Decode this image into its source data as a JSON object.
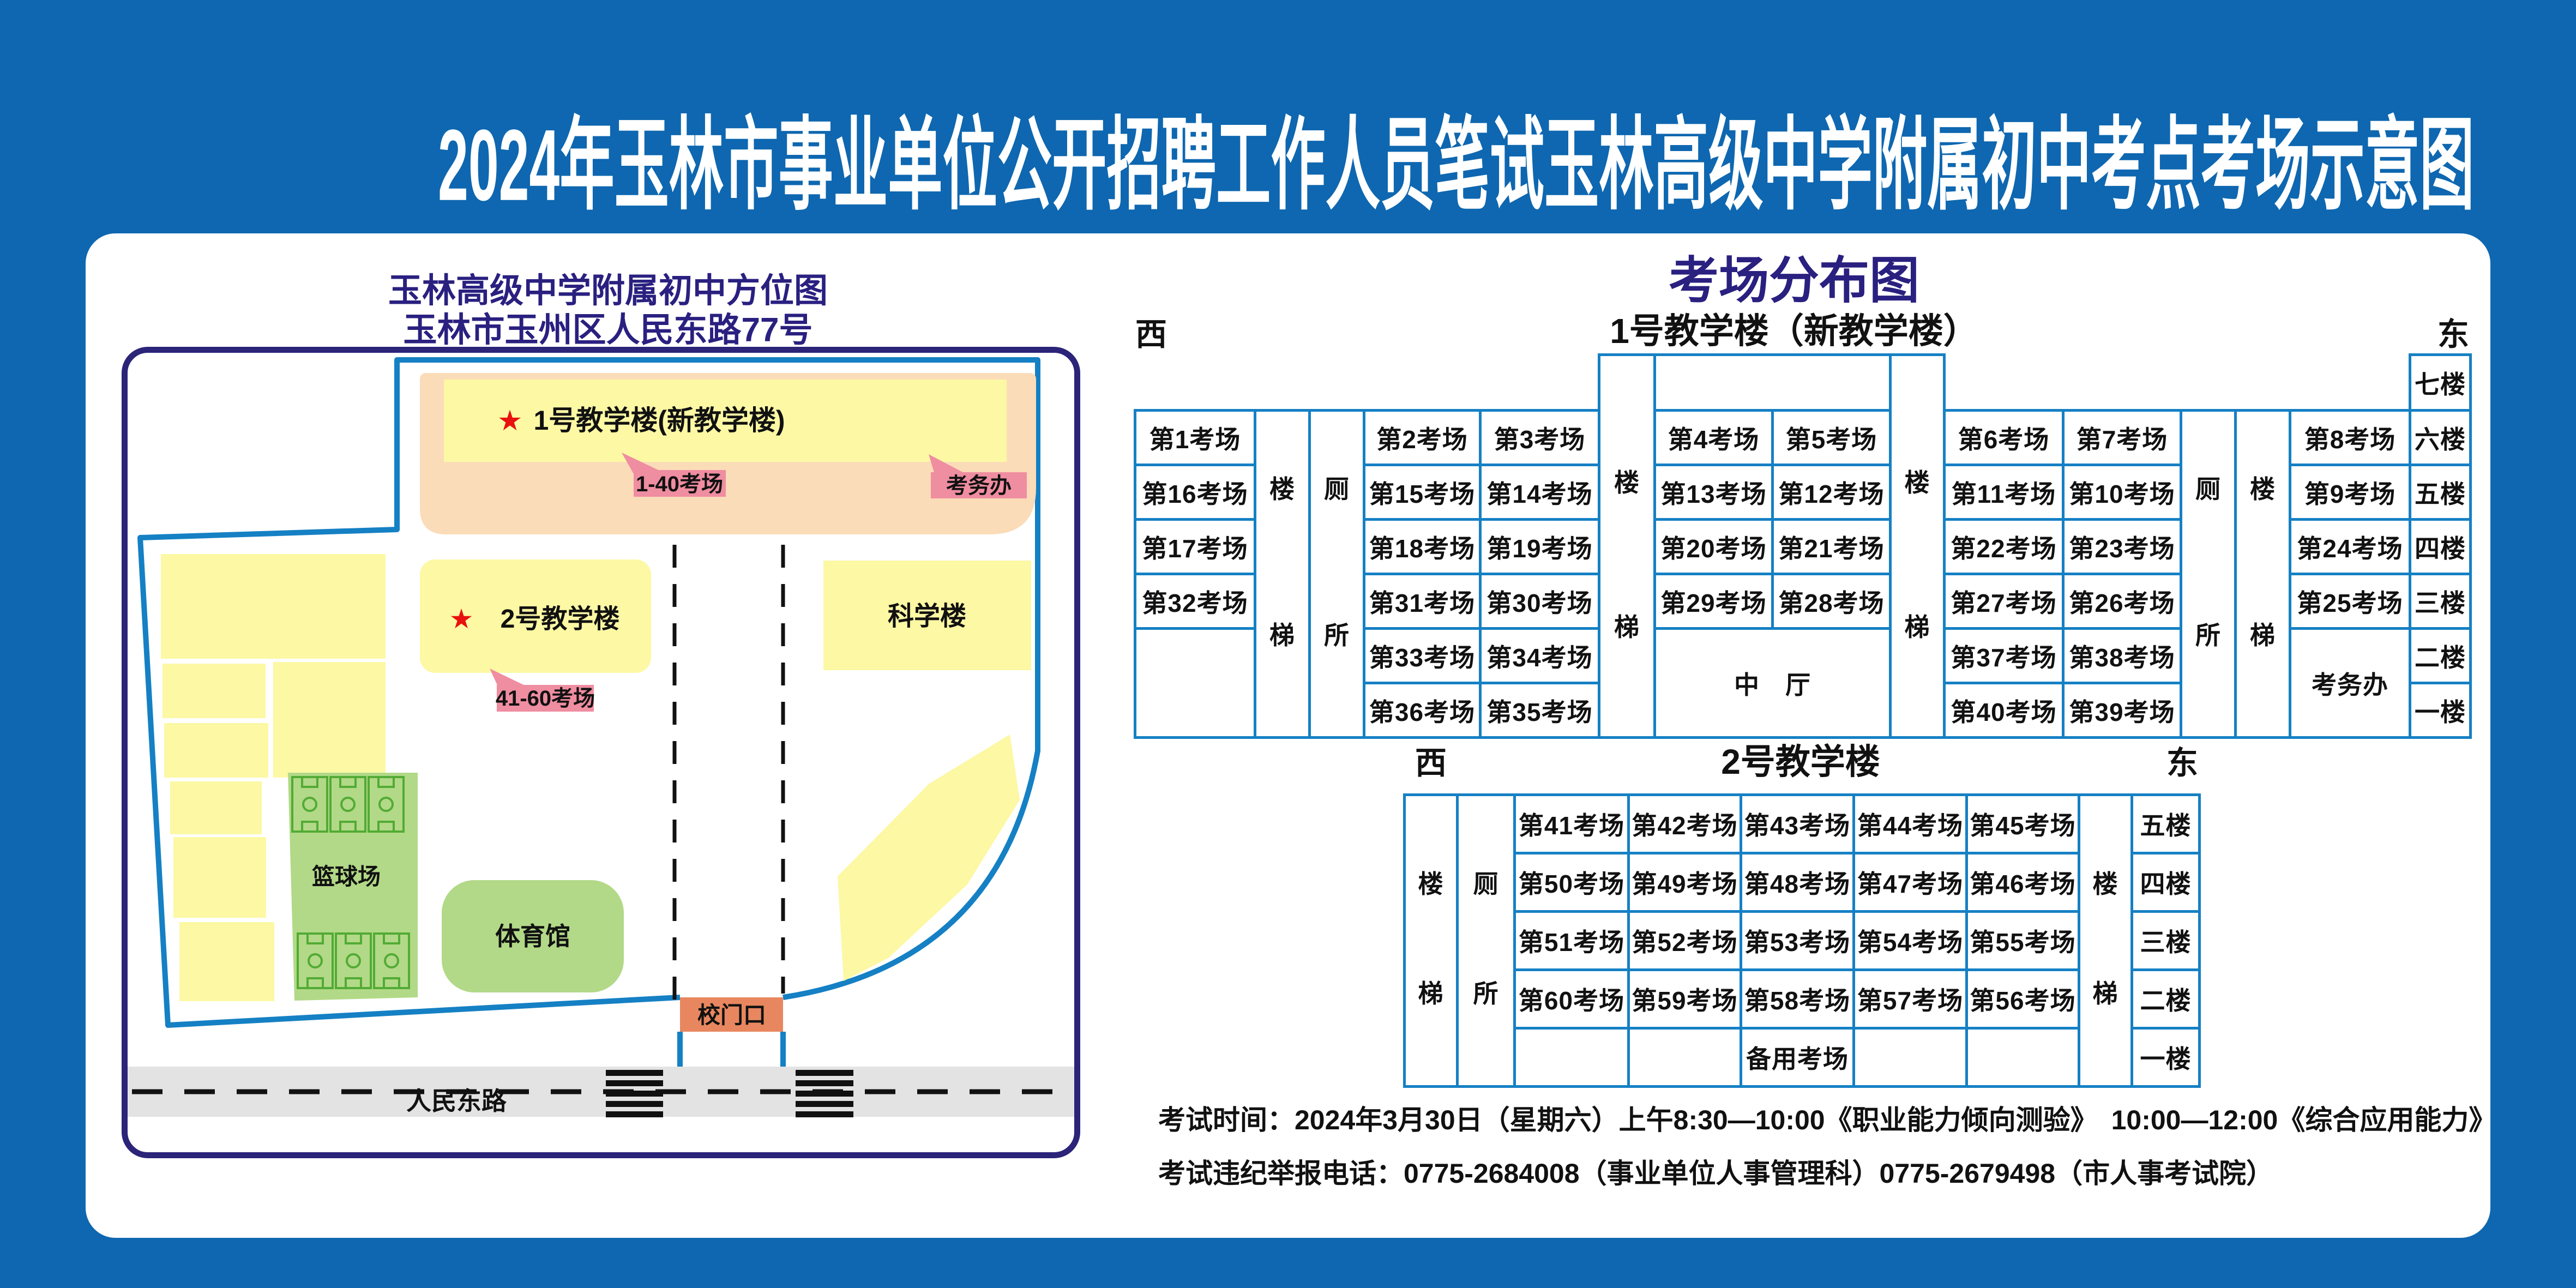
{
  "main_title": "2024年玉林市事业单位公开招聘工作人员笔试玉林高级中学附属初中考点考场示意图",
  "map": {
    "title_line1": "玉林高级中学附属初中方位图",
    "title_line2": "玉林市玉州区人民东路77号",
    "star": "★",
    "building1_label": "1号教学楼(新教学楼)",
    "building1_rooms": "1-40考场",
    "exam_office": "考务办",
    "building2_label": "2号教学楼",
    "building2_rooms": "41-60考场",
    "science_building": "科学楼",
    "basketball_court": "篮球场",
    "gymnasium": "体育馆",
    "school_gate": "校门口",
    "road_name": "人民东路"
  },
  "distribution": {
    "title": "考场分布图",
    "west": "西",
    "east": "东",
    "stair_chars": [
      "楼",
      "梯"
    ],
    "toilet_chars": [
      "厕",
      "所"
    ],
    "building1": {
      "name": "1号教学楼（新教学楼）",
      "floors": [
        "七楼",
        "六楼",
        "五楼",
        "四楼",
        "三楼",
        "二楼",
        "一楼"
      ],
      "west_outer": [
        "第1考场",
        "第16考场",
        "第17考场",
        "第32考场"
      ],
      "west_rows": [
        [
          "第2考场",
          "第3考场"
        ],
        [
          "第15考场",
          "第14考场"
        ],
        [
          "第18考场",
          "第19考场"
        ],
        [
          "第31考场",
          "第30考场"
        ],
        [
          "第33考场",
          "第34考场"
        ],
        [
          "第36考场",
          "第35考场"
        ]
      ],
      "center_rows": [
        [
          "第4考场",
          "第5考场"
        ],
        [
          "第13考场",
          "第12考场"
        ],
        [
          "第20考场",
          "第21考场"
        ],
        [
          "第29考场",
          "第28考场"
        ]
      ],
      "east_rows": [
        [
          "第6考场",
          "第7考场"
        ],
        [
          "第11考场",
          "第10考场"
        ],
        [
          "第22考场",
          "第23考场"
        ],
        [
          "第27考场",
          "第26考场"
        ],
        [
          "第37考场",
          "第38考场"
        ],
        [
          "第40考场",
          "第39考场"
        ]
      ],
      "east_outer": [
        "第8考场",
        "第9考场",
        "第24考场",
        "第25考场"
      ],
      "hall": "中　厅",
      "exam_office": "考务办"
    },
    "building2": {
      "name": "2号教学楼",
      "floors": [
        "五楼",
        "四楼",
        "三楼",
        "二楼",
        "一楼"
      ],
      "rows": [
        [
          "第41考场",
          "第42考场",
          "第43考场",
          "第44考场",
          "第45考场"
        ],
        [
          "第50考场",
          "第49考场",
          "第48考场",
          "第47考场",
          "第46考场"
        ],
        [
          "第51考场",
          "第52考场",
          "第53考场",
          "第54考场",
          "第55考场"
        ],
        [
          "第60考场",
          "第59考场",
          "第58考场",
          "第57考场",
          "第56考场"
        ]
      ],
      "backup": "备用考场"
    }
  },
  "footer": {
    "line1": "考试时间：2024年3月30日（星期六）上午8:30—10:00《职业能力倾向测验》　10:00—12:00《综合应用能力》",
    "line2": "考试违纪举报电话：0775-2684008（事业单位人事管理科）0775-2679498（市人事考试院）"
  },
  "colors": {
    "background": "#0e67b0",
    "panel": "#ffffff",
    "navy": "#2a2080",
    "table_border": "#1580c4",
    "peach": "#fbdcb8",
    "building_yellow": "#fcf8a4",
    "green": "#b2d987",
    "court_line": "#52ab35",
    "pink": "#ef8da1",
    "gate_orange": "#e8875f",
    "road_gray": "#e3e3e3",
    "star_red": "#e8110d"
  }
}
